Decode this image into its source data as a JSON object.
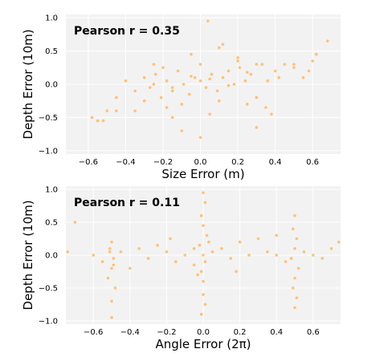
{
  "colors": {
    "point": "#ffbe6e",
    "panel_bg": "#f2f2f2",
    "grid": "#ffffff"
  },
  "chart_data": [
    {
      "type": "scatter",
      "title": "",
      "xlabel": "Size Error (m)",
      "ylabel": "Depth Error (10m)",
      "annotation": "Pearson r = 0.35",
      "pearson_r": 0.35,
      "xlim": [
        -0.72,
        0.75
      ],
      "ylim": [
        -1.05,
        1.05
      ],
      "xticks": [
        -0.6,
        -0.4,
        -0.2,
        0.0,
        0.2,
        0.4,
        0.6
      ],
      "xtick_labels": [
        "−0.6",
        "−0.4",
        "−0.2",
        "0.0",
        "0.2",
        "0.4",
        "0.6"
      ],
      "yticks": [
        -1.0,
        -0.5,
        0.0,
        0.5,
        1.0
      ],
      "ytick_labels": [
        "−1.0",
        "−0.5",
        "0.0",
        "0.5",
        "1.0"
      ],
      "grid": true,
      "series": [
        {
          "x": [
            -0.55,
            -0.5,
            -0.45,
            -0.4,
            -0.35,
            -0.3,
            -0.27,
            -0.24,
            -0.21,
            -0.18,
            -0.15,
            -0.12,
            -0.09,
            -0.06,
            -0.03,
            0.0,
            0.03,
            0.06,
            0.09,
            0.12,
            0.15,
            0.18,
            0.21,
            0.24,
            0.27,
            0.3,
            0.33,
            0.36,
            0.4,
            0.45,
            0.5,
            0.55,
            0.6,
            -0.3,
            -0.2,
            -0.1,
            0.0,
            0.1,
            0.2,
            0.3,
            -0.25,
            -0.15,
            -0.05,
            0.05,
            0.15,
            0.25,
            -0.35,
            -0.15,
            0.05,
            0.25,
            0.35,
            -0.05,
            0.1,
            0.2,
            -0.58,
            -0.52,
            -0.45,
            -0.1,
            0.0,
            0.3,
            0.38,
            0.42,
            0.5,
            0.58,
            0.62,
            0.68,
            0.04,
            -0.25,
            0.12,
            -0.18
          ],
          "y": [
            -0.55,
            -0.4,
            -0.2,
            0.05,
            -0.1,
            0.1,
            -0.05,
            0.15,
            -0.2,
            0.05,
            -0.1,
            0.2,
            0.0,
            -0.15,
            0.1,
            0.05,
            -0.05,
            0.15,
            -0.1,
            0.1,
            0.2,
            0.0,
            0.25,
            0.05,
            0.15,
            -0.2,
            0.3,
            0.05,
            0.2,
            0.3,
            0.25,
            0.1,
            0.35,
            -0.25,
            0.25,
            -0.3,
            0.3,
            -0.25,
            0.35,
            0.3,
            0.0,
            -0.05,
            0.12,
            0.08,
            -0.02,
            0.18,
            -0.4,
            -0.5,
            -0.45,
            -0.3,
            -0.35,
            0.45,
            0.55,
            0.4,
            -0.5,
            -0.55,
            -0.4,
            -0.7,
            -0.8,
            -0.65,
            -0.45,
            0.1,
            0.3,
            0.2,
            0.45,
            0.65,
            0.95,
            0.3,
            0.6,
            -0.35
          ]
        }
      ]
    },
    {
      "type": "scatter",
      "title": "",
      "xlabel": "Angle Error (2π)",
      "ylabel": "Depth Error (10m)",
      "annotation": "Pearson r = 0.11",
      "pearson_r": 0.11,
      "xlim": [
        -0.75,
        0.75
      ],
      "ylim": [
        -1.05,
        1.05
      ],
      "xticks": [
        -0.6,
        -0.4,
        -0.2,
        0.0,
        0.2,
        0.4,
        0.6
      ],
      "xtick_labels": [
        "−0.6",
        "−0.4",
        "−0.2",
        "0.0",
        "0.2",
        "0.4",
        "0.6"
      ],
      "yticks": [
        -1.0,
        -0.5,
        0.0,
        0.5,
        1.0
      ],
      "ytick_labels": [
        "−1.0",
        "−0.5",
        "0.0",
        "0.5",
        "1.0"
      ],
      "grid": true,
      "series": [
        {
          "x": [
            -0.5,
            -0.51,
            -0.49,
            -0.5,
            -0.52,
            -0.48,
            -0.5,
            -0.51,
            -0.49,
            -0.5,
            -0.55,
            -0.45,
            -0.6,
            -0.7,
            -0.74,
            -0.35,
            -0.3,
            -0.25,
            -0.2,
            -0.15,
            -0.1,
            -0.05,
            0.0,
            0.01,
            -0.01,
            0.0,
            0.02,
            -0.02,
            0.0,
            0.01,
            -0.01,
            0.0,
            0.0,
            0.01,
            -0.01,
            0.03,
            -0.03,
            0.05,
            -0.05,
            0.1,
            0.15,
            0.2,
            0.25,
            0.3,
            0.35,
            0.4,
            0.5,
            0.49,
            0.51,
            0.5,
            0.48,
            0.52,
            0.5,
            0.49,
            0.51,
            0.5,
            0.55,
            0.6,
            0.65,
            0.7,
            0.74,
            -0.18,
            0.18,
            -0.4,
            0.4,
            0.45
          ],
          "y": [
            0.2,
            0.1,
            -0.05,
            -0.2,
            -0.35,
            -0.5,
            -0.7,
            0.05,
            -0.15,
            -0.95,
            -0.1,
            0.05,
            0.0,
            0.5,
            0.05,
            0.1,
            -0.05,
            0.15,
            0.05,
            -0.1,
            0.0,
            0.1,
            0.95,
            0.8,
            0.6,
            0.45,
            0.3,
            0.15,
            0.0,
            -0.1,
            -0.25,
            -0.4,
            -0.6,
            -0.75,
            -0.9,
            0.2,
            -0.3,
            0.05,
            -0.15,
            0.1,
            -0.05,
            0.2,
            0.0,
            0.25,
            0.05,
            0.0,
            0.6,
            0.4,
            0.25,
            0.1,
            -0.05,
            -0.2,
            -0.35,
            -0.5,
            -0.65,
            -0.8,
            0.05,
            0.0,
            -0.05,
            0.1,
            0.2,
            0.25,
            -0.25,
            -0.2,
            0.3,
            -0.1
          ]
        }
      ]
    }
  ]
}
